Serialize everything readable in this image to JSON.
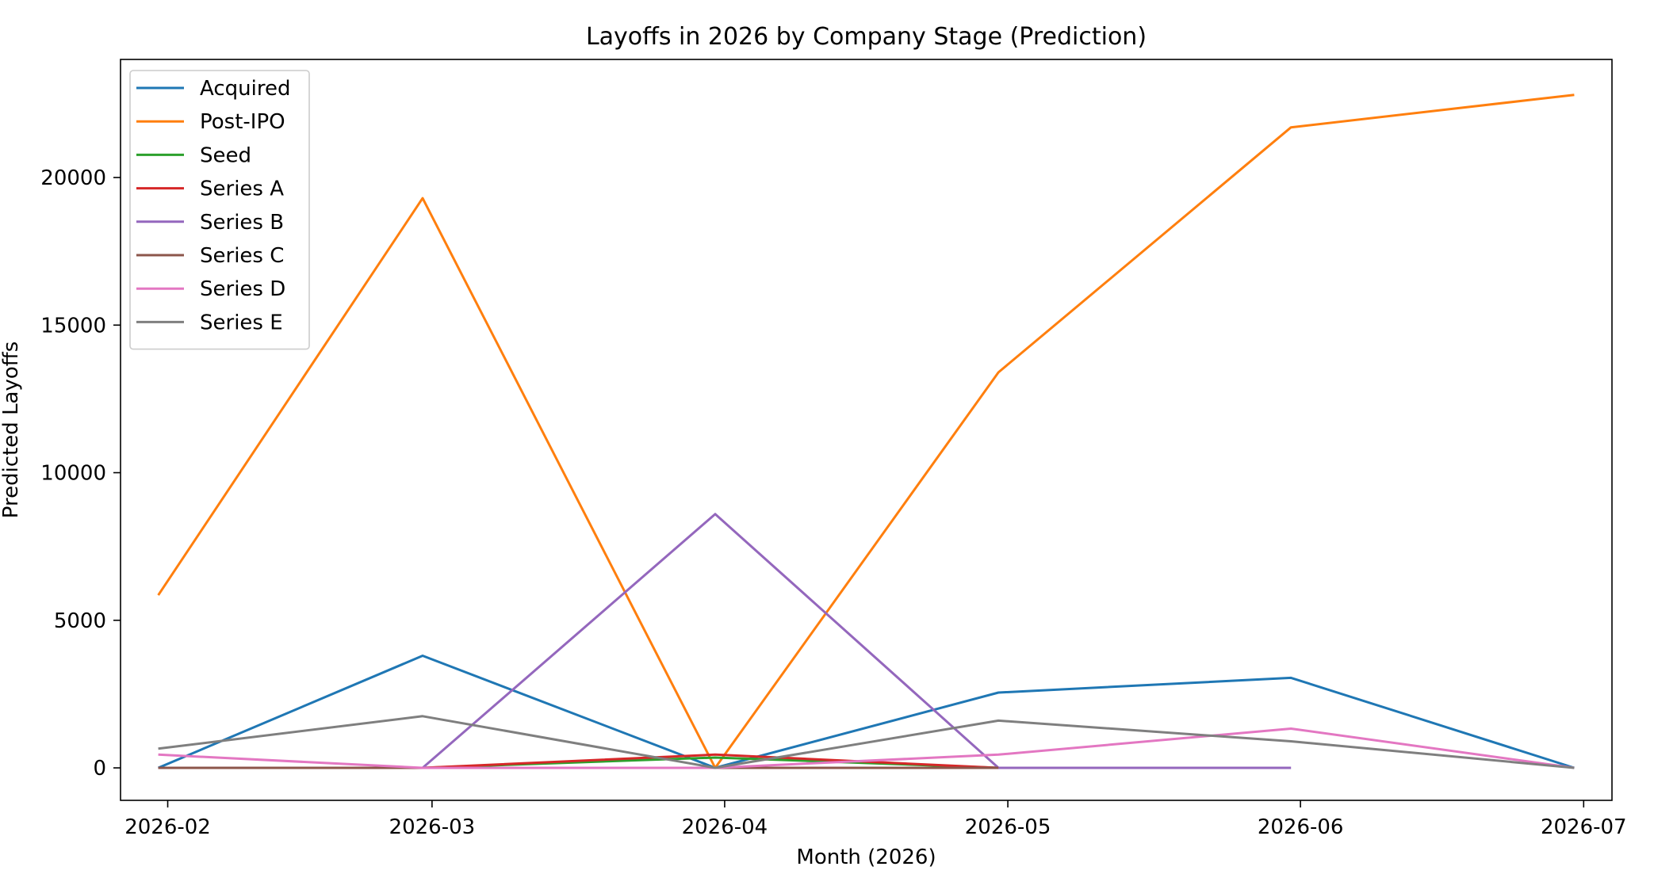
{
  "chart_data": {
    "type": "line",
    "title": "Layoffs in 2026 by Company Stage (Prediction)",
    "xlabel": "Month (2026)",
    "ylabel": "Predicted Layoffs",
    "x": [
      "2026-01-31",
      "2026-02-28",
      "2026-03-31",
      "2026-04-30",
      "2026-05-31",
      "2026-06-30"
    ],
    "xticks": [
      "2026-02",
      "2026-03",
      "2026-04",
      "2026-05",
      "2026-06",
      "2026-07"
    ],
    "yticks": [
      "0",
      "5000",
      "10000",
      "15000",
      "20000"
    ],
    "ylim": [
      -1100,
      24000
    ],
    "grid": false,
    "legend_position": "upper-left",
    "series": [
      {
        "name": "Acquired",
        "color": "#1f77b4",
        "values": [
          0,
          3800,
          0,
          2550,
          3050,
          0
        ]
      },
      {
        "name": "Post-IPO",
        "color": "#ff7f0e",
        "values": [
          5850,
          19300,
          0,
          13400,
          21700,
          22800
        ]
      },
      {
        "name": "Seed",
        "color": "#2ca02c",
        "values": [
          0,
          0,
          350,
          0,
          null,
          null
        ]
      },
      {
        "name": "Series A",
        "color": "#d62728",
        "values": [
          0,
          0,
          450,
          0,
          null,
          null
        ]
      },
      {
        "name": "Series B",
        "color": "#9467bd",
        "values": [
          0,
          0,
          8600,
          0,
          0,
          null
        ]
      },
      {
        "name": "Series C",
        "color": "#8c564b",
        "values": [
          0,
          0,
          0,
          0,
          null,
          null
        ]
      },
      {
        "name": "Series D",
        "color": "#e377c2",
        "values": [
          450,
          0,
          0,
          450,
          1330,
          0
        ]
      },
      {
        "name": "Series E",
        "color": "#7f7f7f",
        "values": [
          650,
          1750,
          0,
          1600,
          900,
          0
        ]
      }
    ]
  }
}
